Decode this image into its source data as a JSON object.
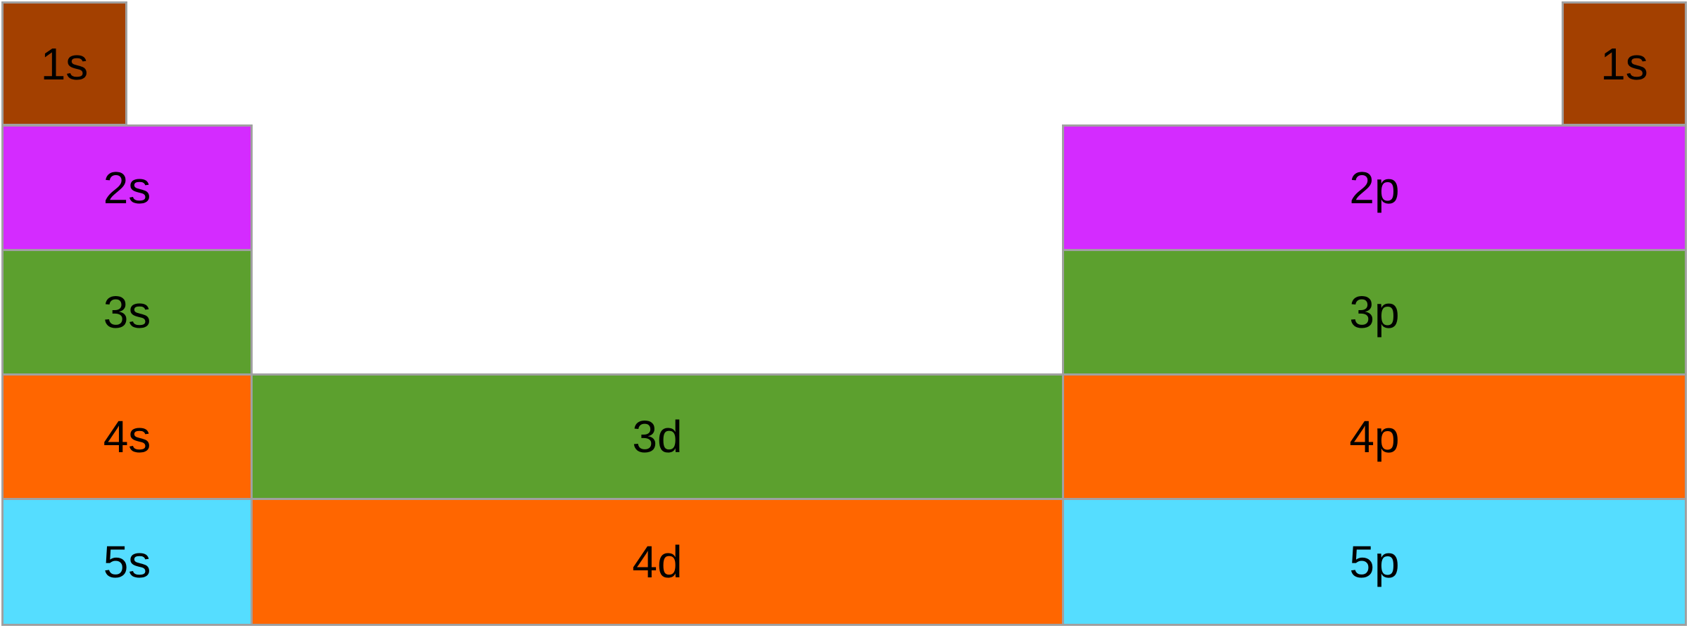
{
  "nodes": [
    {
      "label": "1s",
      "color": "#a34000"
    },
    {
      "label": "1s",
      "color": "#a34000"
    },
    {
      "label": "2s",
      "color": "#d42bff"
    },
    {
      "label": "2p",
      "color": "#d42bff"
    },
    {
      "label": "3s",
      "color": "#5ca02e"
    },
    {
      "label": "3p",
      "color": "#5ca02e"
    },
    {
      "label": "4s",
      "color": "#ff6600"
    },
    {
      "label": "3d",
      "color": "#5ca02e"
    },
    {
      "label": "4p",
      "color": "#ff6600"
    },
    {
      "label": "5s",
      "color": "#55ddff"
    },
    {
      "label": "4d",
      "color": "#ff6600"
    },
    {
      "label": "5p",
      "color": "#55ddff"
    }
  ]
}
